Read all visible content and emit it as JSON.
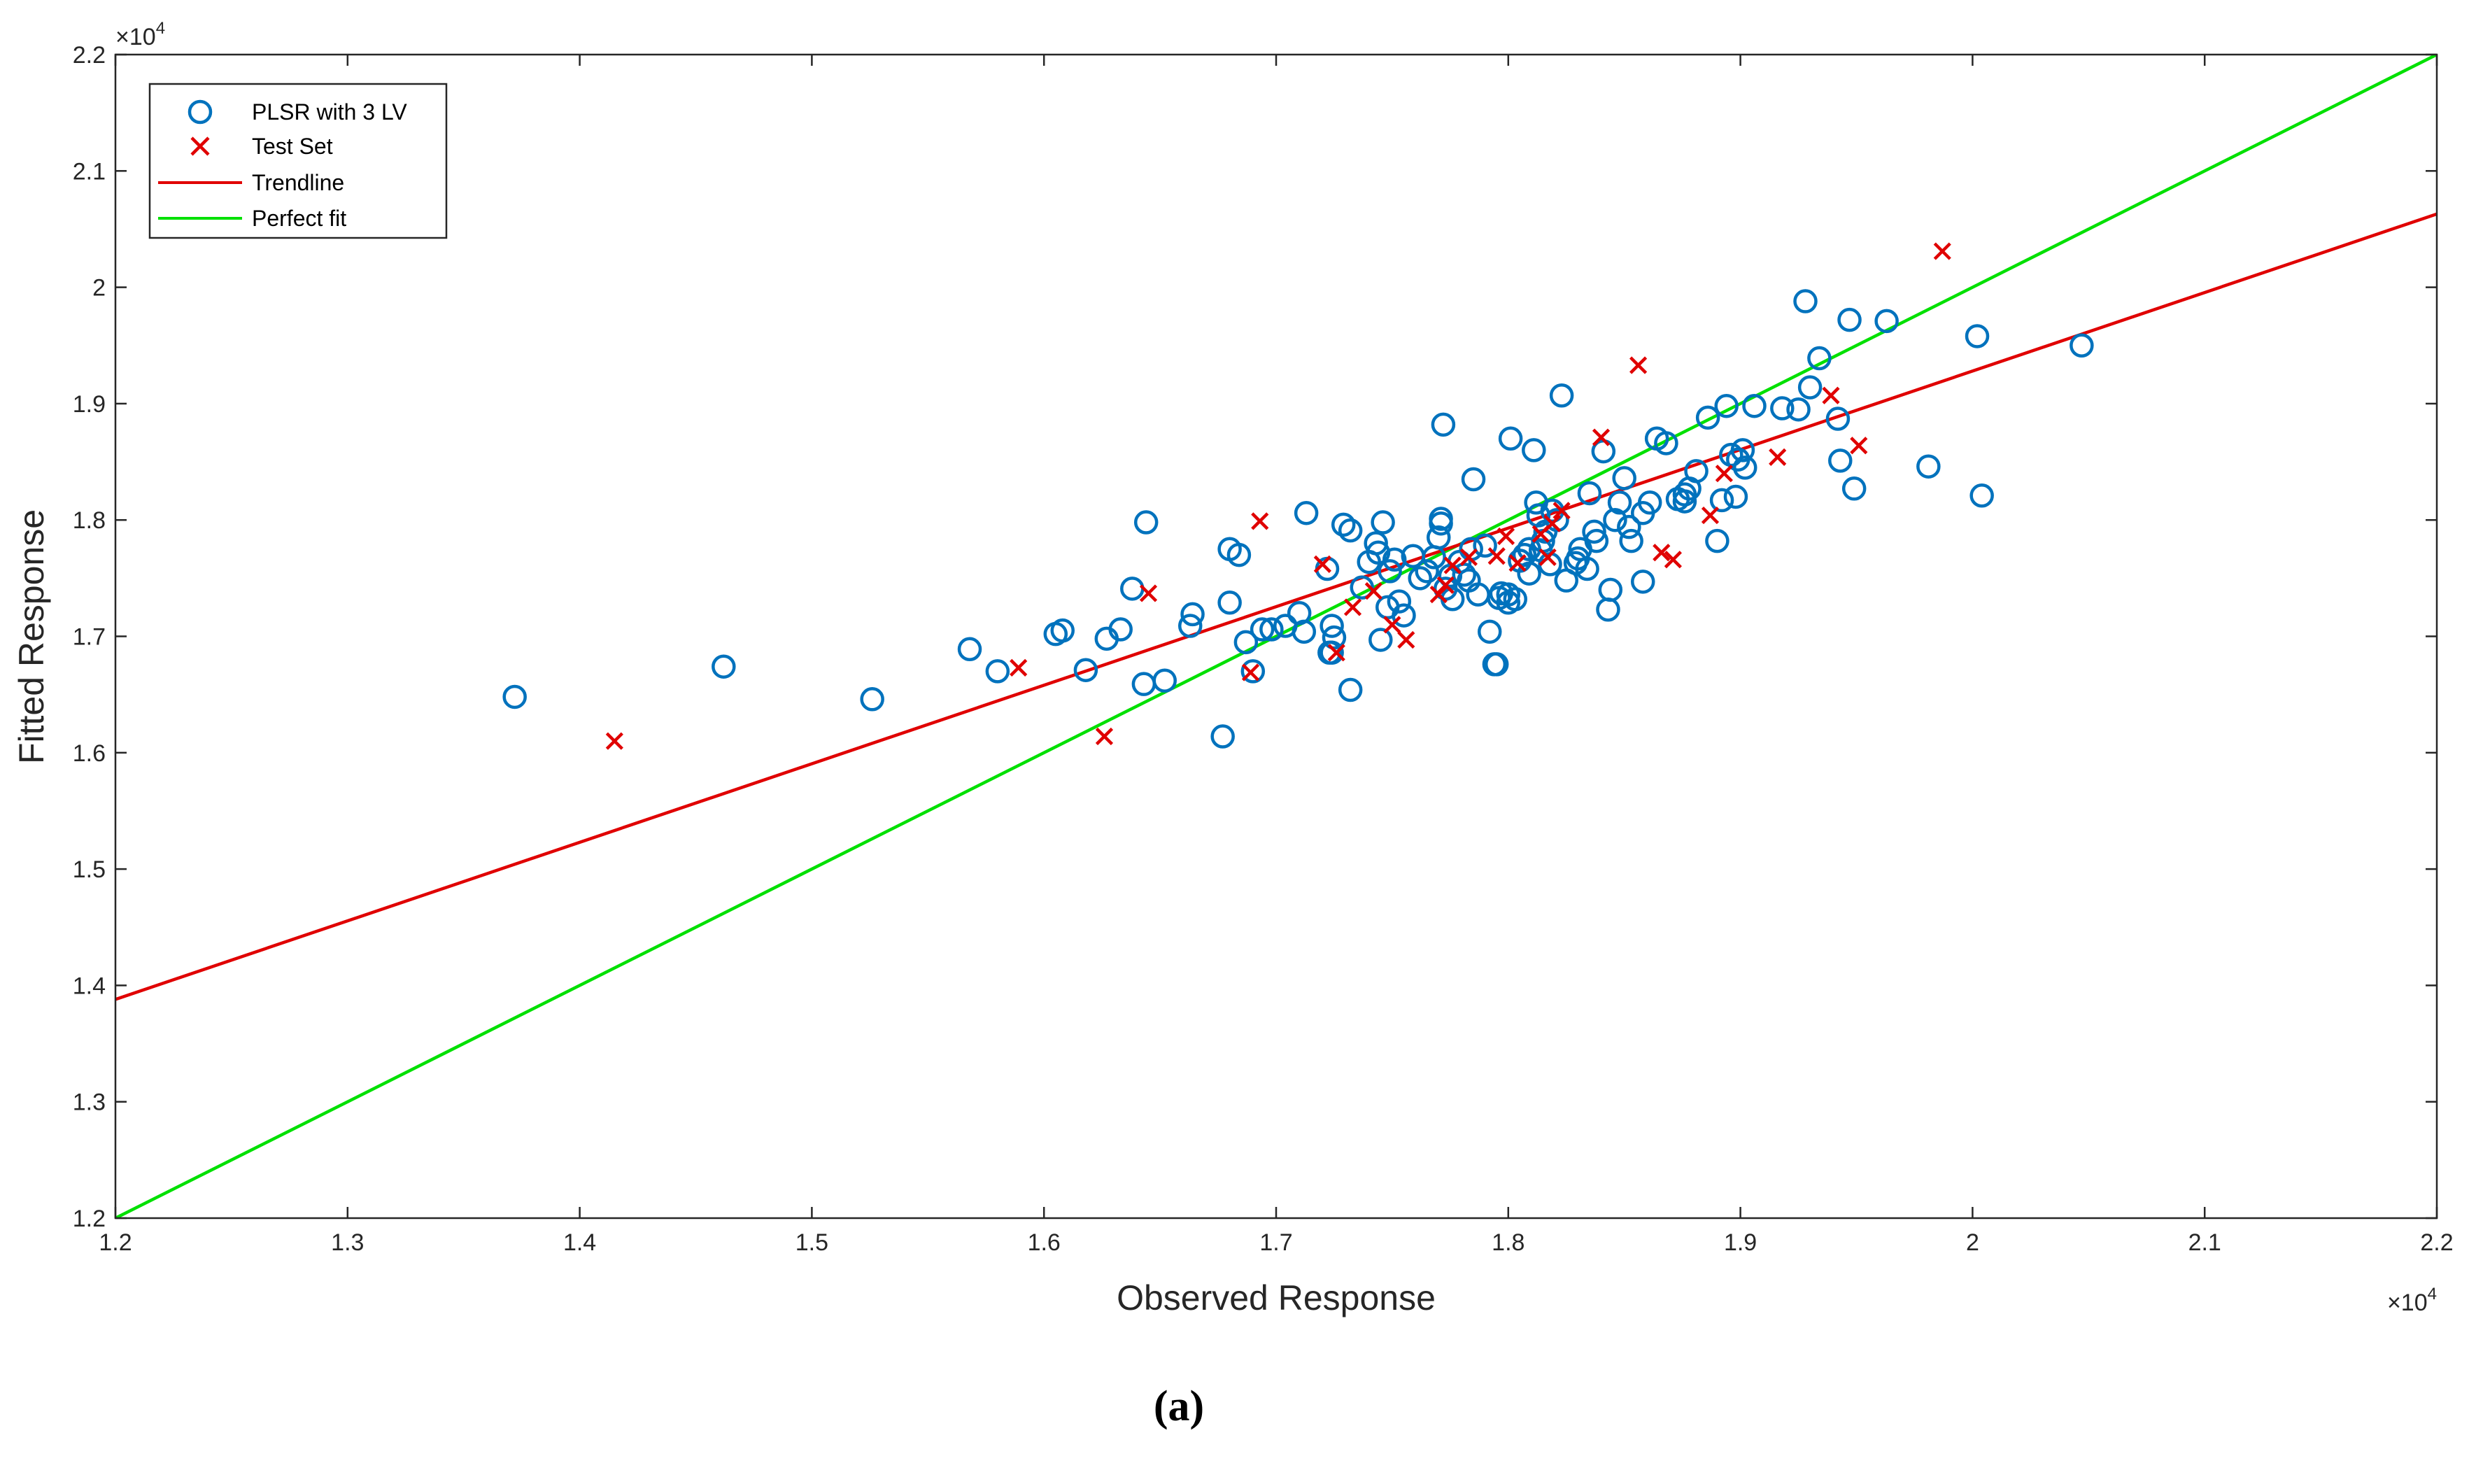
{
  "caption": "(a)",
  "chart_data": {
    "type": "scatter",
    "xlabel": "Observed Response",
    "ylabel": "Fitted Response",
    "x_exponent_label": "×10",
    "x_exponent_power": "4",
    "y_exponent_label": "×10",
    "y_exponent_power": "4",
    "xlim": [
      12000,
      22000
    ],
    "ylim": [
      12000,
      22000
    ],
    "xticks": [
      12000,
      13000,
      14000,
      15000,
      16000,
      17000,
      18000,
      19000,
      20000,
      21000,
      22000
    ],
    "yticks": [
      12000,
      13000,
      14000,
      15000,
      16000,
      17000,
      18000,
      19000,
      20000,
      21000,
      22000
    ],
    "xtick_labels": [
      "1.2",
      "1.3",
      "1.4",
      "1.5",
      "1.6",
      "1.7",
      "1.8",
      "1.9",
      "2",
      "2.1",
      "2.2"
    ],
    "ytick_labels": [
      "1.2",
      "1.3",
      "1.4",
      "1.5",
      "1.6",
      "1.7",
      "1.8",
      "1.9",
      "2",
      "2.1",
      "2.2"
    ],
    "legend_position": "top-left",
    "colors": {
      "plsr": "#0072BD",
      "test": "#E00000",
      "trendline": "#E00000",
      "perfect": "#00E000",
      "axis": "#262626"
    },
    "series": [
      {
        "name": "PLSR with 3 LV",
        "marker": "circle",
        "points": [
          [
            13720,
            16480
          ],
          [
            14620,
            16740
          ],
          [
            15260,
            16460
          ],
          [
            15680,
            16890
          ],
          [
            15800,
            16700
          ],
          [
            16050,
            17020
          ],
          [
            16080,
            17050
          ],
          [
            16180,
            16710
          ],
          [
            16270,
            16980
          ],
          [
            16330,
            17060
          ],
          [
            16380,
            17410
          ],
          [
            16430,
            16590
          ],
          [
            16440,
            17980
          ],
          [
            16520,
            16620
          ],
          [
            16630,
            17090
          ],
          [
            16640,
            17190
          ],
          [
            16770,
            16140
          ],
          [
            16800,
            17750
          ],
          [
            16800,
            17290
          ],
          [
            16840,
            17700
          ],
          [
            16870,
            16950
          ],
          [
            16900,
            16700
          ],
          [
            16940,
            17060
          ],
          [
            16980,
            17060
          ],
          [
            17040,
            17090
          ],
          [
            17100,
            17200
          ],
          [
            17120,
            17040
          ],
          [
            17130,
            18060
          ],
          [
            17220,
            17580
          ],
          [
            17230,
            16860
          ],
          [
            17240,
            17090
          ],
          [
            17240,
            16860
          ],
          [
            17250,
            16990
          ],
          [
            17290,
            17960
          ],
          [
            17320,
            17910
          ],
          [
            17320,
            16540
          ],
          [
            17370,
            17420
          ],
          [
            17400,
            17640
          ],
          [
            17430,
            17800
          ],
          [
            17440,
            17720
          ],
          [
            17450,
            16970
          ],
          [
            17460,
            17980
          ],
          [
            17480,
            17250
          ],
          [
            17490,
            17560
          ],
          [
            17510,
            17660
          ],
          [
            17530,
            17300
          ],
          [
            17550,
            17180
          ],
          [
            17590,
            17690
          ],
          [
            17620,
            17500
          ],
          [
            17650,
            17560
          ],
          [
            17680,
            17680
          ],
          [
            17700,
            17850
          ],
          [
            17710,
            18010
          ],
          [
            17710,
            17970
          ],
          [
            17720,
            18820
          ],
          [
            17730,
            17410
          ],
          [
            17750,
            17520
          ],
          [
            17760,
            17320
          ],
          [
            17790,
            17640
          ],
          [
            17810,
            17530
          ],
          [
            17830,
            17480
          ],
          [
            17840,
            17750
          ],
          [
            17850,
            18350
          ],
          [
            17870,
            17360
          ],
          [
            17900,
            17780
          ],
          [
            17920,
            17040
          ],
          [
            17940,
            16760
          ],
          [
            17950,
            16760
          ],
          [
            17960,
            17330
          ],
          [
            17970,
            17370
          ],
          [
            18000,
            17290
          ],
          [
            18000,
            17360
          ],
          [
            18010,
            18700
          ],
          [
            18030,
            17320
          ],
          [
            18050,
            17650
          ],
          [
            18070,
            17700
          ],
          [
            18090,
            17540
          ],
          [
            18090,
            17750
          ],
          [
            18110,
            18600
          ],
          [
            18120,
            18150
          ],
          [
            18130,
            18040
          ],
          [
            18140,
            17740
          ],
          [
            18150,
            17820
          ],
          [
            18160,
            17900
          ],
          [
            18180,
            17620
          ],
          [
            18190,
            18080
          ],
          [
            18210,
            18000
          ],
          [
            18230,
            19070
          ],
          [
            18250,
            17480
          ],
          [
            18290,
            17630
          ],
          [
            18300,
            17670
          ],
          [
            18310,
            17750
          ],
          [
            18340,
            17580
          ],
          [
            18350,
            18230
          ],
          [
            18370,
            17900
          ],
          [
            18380,
            17820
          ],
          [
            18410,
            18590
          ],
          [
            18430,
            17230
          ],
          [
            18440,
            17400
          ],
          [
            18460,
            18000
          ],
          [
            18480,
            18150
          ],
          [
            18500,
            18360
          ],
          [
            18520,
            17940
          ],
          [
            18530,
            17820
          ],
          [
            18580,
            17470
          ],
          [
            18580,
            18060
          ],
          [
            18610,
            18150
          ],
          [
            18640,
            18700
          ],
          [
            18680,
            18660
          ],
          [
            18730,
            18180
          ],
          [
            18760,
            18220
          ],
          [
            18760,
            18160
          ],
          [
            18780,
            18270
          ],
          [
            18810,
            18420
          ],
          [
            18860,
            18880
          ],
          [
            18900,
            17820
          ],
          [
            18920,
            18170
          ],
          [
            18940,
            18980
          ],
          [
            18960,
            18560
          ],
          [
            18980,
            18200
          ],
          [
            18990,
            18520
          ],
          [
            19010,
            18600
          ],
          [
            19020,
            18450
          ],
          [
            19060,
            18980
          ],
          [
            19180,
            18960
          ],
          [
            19250,
            18950
          ],
          [
            19280,
            19880
          ],
          [
            19300,
            19140
          ],
          [
            19340,
            19390
          ],
          [
            19420,
            18870
          ],
          [
            19430,
            18510
          ],
          [
            19470,
            19720
          ],
          [
            19490,
            18270
          ],
          [
            19630,
            19710
          ],
          [
            19810,
            18460
          ],
          [
            20020,
            19580
          ],
          [
            20040,
            18210
          ],
          [
            20470,
            19500
          ]
        ]
      },
      {
        "name": "Test Set",
        "marker": "x",
        "points": [
          [
            14150,
            16100
          ],
          [
            15890,
            16730
          ],
          [
            16260,
            16140
          ],
          [
            16450,
            17370
          ],
          [
            16890,
            16690
          ],
          [
            16930,
            17990
          ],
          [
            17200,
            17620
          ],
          [
            17260,
            16860
          ],
          [
            17330,
            17250
          ],
          [
            17420,
            17390
          ],
          [
            17500,
            17100
          ],
          [
            17560,
            16970
          ],
          [
            17700,
            17360
          ],
          [
            17730,
            17440
          ],
          [
            17760,
            17610
          ],
          [
            17830,
            17680
          ],
          [
            17950,
            17690
          ],
          [
            17990,
            17860
          ],
          [
            18040,
            17630
          ],
          [
            18140,
            17880
          ],
          [
            18170,
            17680
          ],
          [
            18190,
            17970
          ],
          [
            18230,
            18080
          ],
          [
            18400,
            18710
          ],
          [
            18560,
            19330
          ],
          [
            18660,
            17720
          ],
          [
            18710,
            17660
          ],
          [
            18870,
            18040
          ],
          [
            18930,
            18400
          ],
          [
            19160,
            18540
          ],
          [
            19390,
            19070
          ],
          [
            19510,
            18640
          ],
          [
            19870,
            20310
          ]
        ]
      },
      {
        "name": "Trendline",
        "type": "line",
        "x": [
          12000,
          22000
        ],
        "y": [
          13880,
          20630
        ]
      },
      {
        "name": "Perfect fit",
        "type": "line",
        "x": [
          12000,
          22000
        ],
        "y": [
          12000,
          22000
        ]
      }
    ]
  }
}
